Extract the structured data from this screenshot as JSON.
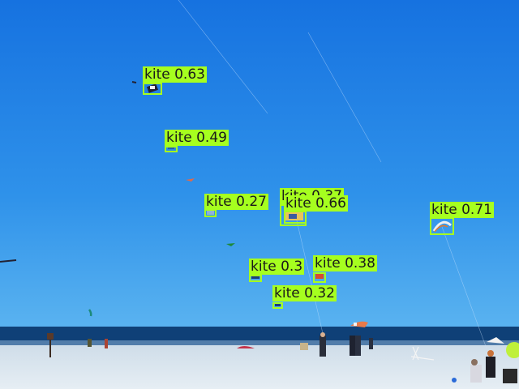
{
  "scene": {
    "description_colors": {
      "sky_top": "#1877e3",
      "sky_bottom": "#49a9ee",
      "sea": "#0e3f7a",
      "sand": "#dbe6ef"
    }
  },
  "detections": [
    {
      "label": "kite",
      "score": "0.63"
    },
    {
      "label": "kite",
      "score": "0.49"
    },
    {
      "label": "kite",
      "score": "0.27"
    },
    {
      "label": "kite",
      "score": "0.37"
    },
    {
      "label": "kite",
      "score": "0.66"
    },
    {
      "label": "kite",
      "score": "0.71"
    },
    {
      "label": "kite",
      "score": "0.3"
    },
    {
      "label": "kite",
      "score": "0.38"
    },
    {
      "label": "kite",
      "score": "0.32"
    }
  ],
  "box_color": "#a6ff1f"
}
